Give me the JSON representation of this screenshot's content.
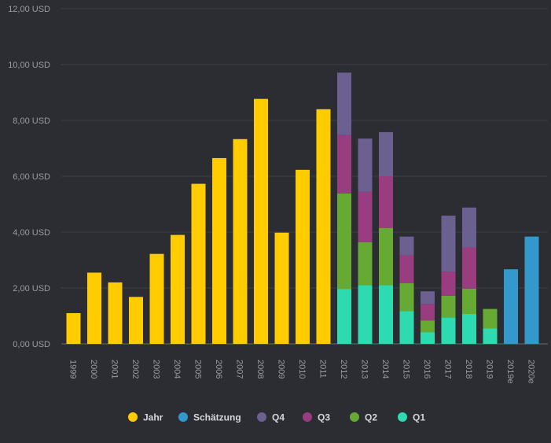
{
  "chart_data": {
    "type": "bar",
    "stacked": true,
    "categories": [
      "1999",
      "2000",
      "2001",
      "2002",
      "2003",
      "2004",
      "2005",
      "2006",
      "2007",
      "2008",
      "2009",
      "2010",
      "2011",
      "2012",
      "2013",
      "2014",
      "2015",
      "2016",
      "2017",
      "2018",
      "2019",
      "2019e",
      "2020e"
    ],
    "ylim": [
      0,
      12
    ],
    "yticks": [
      "0,00 USD",
      "2,00 USD",
      "4,00 USD",
      "6,00 USD",
      "8,00 USD",
      "10,00 USD",
      "12,00 USD"
    ],
    "ytick_values": [
      0,
      2,
      4,
      6,
      8,
      10,
      12
    ],
    "grid": true,
    "legend_position": "bottom",
    "series": [
      {
        "name": "Jahr",
        "color": "#ffcc00",
        "values": [
          1.1,
          2.55,
          2.2,
          1.68,
          3.22,
          3.9,
          5.73,
          6.65,
          7.33,
          8.77,
          3.98,
          6.23,
          8.4,
          null,
          null,
          null,
          null,
          null,
          null,
          null,
          null,
          null,
          null
        ]
      },
      {
        "name": "Schätzung",
        "color": "#3399cc",
        "values": [
          null,
          null,
          null,
          null,
          null,
          null,
          null,
          null,
          null,
          null,
          null,
          null,
          null,
          null,
          null,
          null,
          null,
          null,
          null,
          null,
          null,
          2.67,
          3.84
        ]
      },
      {
        "name": "Q1",
        "color": "#2edbb0",
        "values": [
          null,
          null,
          null,
          null,
          null,
          null,
          null,
          null,
          null,
          null,
          null,
          null,
          null,
          1.97,
          2.1,
          2.1,
          1.17,
          0.42,
          0.95,
          1.07,
          0.55,
          null,
          null
        ]
      },
      {
        "name": "Q2",
        "color": "#66aa33",
        "values": [
          null,
          null,
          null,
          null,
          null,
          null,
          null,
          null,
          null,
          null,
          null,
          null,
          null,
          3.41,
          1.54,
          2.05,
          1.0,
          0.42,
          0.77,
          0.91,
          0.7,
          null,
          null
        ]
      },
      {
        "name": "Q3",
        "color": "#993d80",
        "values": [
          null,
          null,
          null,
          null,
          null,
          null,
          null,
          null,
          null,
          null,
          null,
          null,
          null,
          2.09,
          1.8,
          1.85,
          1.0,
          0.59,
          0.87,
          1.47,
          null,
          null,
          null
        ]
      },
      {
        "name": "Q4",
        "color": "#6b6090",
        "values": [
          null,
          null,
          null,
          null,
          null,
          null,
          null,
          null,
          null,
          null,
          null,
          null,
          null,
          2.24,
          1.91,
          1.58,
          0.67,
          0.45,
          2.0,
          1.43,
          null,
          null,
          null
        ]
      }
    ],
    "legend_order": [
      "Jahr",
      "Schätzung",
      "Q4",
      "Q3",
      "Q2",
      "Q1"
    ]
  }
}
